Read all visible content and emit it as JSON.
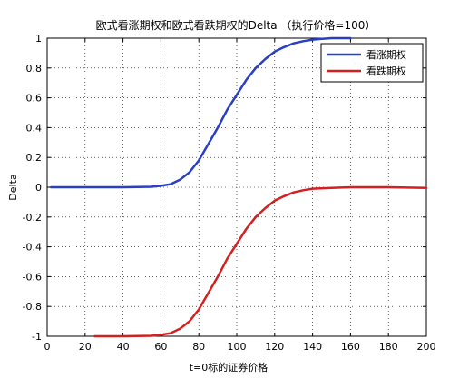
{
  "chart_data": {
    "type": "line",
    "title": "欧式看涨期权和欧式看跌期权的Delta （执行价格=100）",
    "xlabel": "t=0标的证券价格",
    "ylabel": "Delta",
    "xlim": [
      0,
      200
    ],
    "ylim": [
      -1,
      1
    ],
    "xticks": [
      0,
      20,
      40,
      60,
      80,
      100,
      120,
      140,
      160,
      180,
      200
    ],
    "yticks": [
      -1,
      -0.8,
      -0.6,
      -0.4,
      -0.2,
      0,
      0.2,
      0.4,
      0.6,
      0.8,
      1
    ],
    "xtick_labels": [
      "0",
      "20",
      "40",
      "60",
      "80",
      "100",
      "120",
      "140",
      "160",
      "180",
      "200"
    ],
    "ytick_labels": [
      "-1",
      "-0.8",
      "-0.6",
      "-0.4",
      "-0.2",
      "0",
      "0.2",
      "0.4",
      "0.6",
      "0.8",
      "1"
    ],
    "grid": true,
    "grid_style": "dotted",
    "legend_position": "top-right",
    "series": [
      {
        "name": "看涨期权",
        "color": "#2a3fc4",
        "x": [
          2,
          40,
          55,
          60,
          65,
          70,
          75,
          80,
          85,
          90,
          95,
          100,
          105,
          110,
          115,
          120,
          125,
          130,
          135,
          140,
          145,
          150,
          155,
          160
        ],
        "y": [
          0,
          0,
          0.003,
          0.01,
          0.02,
          0.05,
          0.1,
          0.18,
          0.29,
          0.4,
          0.52,
          0.62,
          0.72,
          0.8,
          0.86,
          0.91,
          0.94,
          0.965,
          0.98,
          0.99,
          0.995,
          1.0,
          1.0,
          1.0
        ]
      },
      {
        "name": "看跌期权",
        "color": "#d42020",
        "x": [
          25,
          40,
          55,
          60,
          65,
          70,
          75,
          80,
          85,
          90,
          95,
          100,
          105,
          110,
          115,
          120,
          125,
          130,
          135,
          140,
          150,
          160,
          180,
          200
        ],
        "y": [
          -1,
          -1,
          -0.997,
          -0.99,
          -0.98,
          -0.95,
          -0.9,
          -0.82,
          -0.71,
          -0.6,
          -0.48,
          -0.38,
          -0.28,
          -0.2,
          -0.14,
          -0.09,
          -0.06,
          -0.035,
          -0.02,
          -0.01,
          -0.005,
          0,
          0,
          -0.005
        ]
      }
    ]
  }
}
